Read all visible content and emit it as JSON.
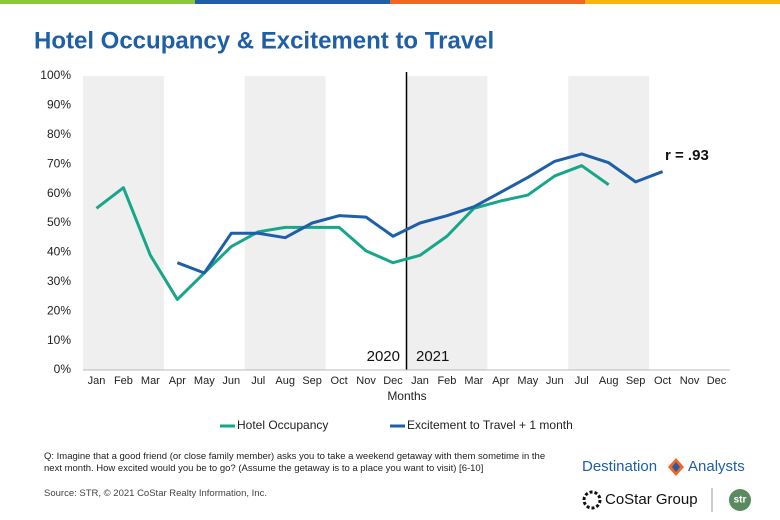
{
  "chart_data": {
    "type": "line",
    "title": "Hotel Occupancy & Excitement to Travel",
    "x_label": "Months",
    "categories": [
      "Jan",
      "Feb",
      "Mar",
      "Apr",
      "May",
      "Jun",
      "Jul",
      "Aug",
      "Sep",
      "Oct",
      "Nov",
      "Dec",
      "Jan",
      "Feb",
      "Mar",
      "Apr",
      "May",
      "Jun",
      "Jul",
      "Aug",
      "Sep",
      "Oct",
      "Nov",
      "Dec"
    ],
    "year_labels": [
      "2020",
      "2021"
    ],
    "annotation": "r = .93",
    "ylim": [
      0,
      100
    ],
    "yticks": [
      {
        "value": 0,
        "label": "0%"
      },
      {
        "value": 10,
        "label": "10%"
      },
      {
        "value": 20,
        "label": "20%"
      },
      {
        "value": 30,
        "label": "30%"
      },
      {
        "value": 40,
        "label": "40%"
      },
      {
        "value": 50,
        "label": "50%"
      },
      {
        "value": 60,
        "label": "60%"
      },
      {
        "value": 70,
        "label": "70%"
      },
      {
        "value": 80,
        "label": "80%"
      },
      {
        "value": 90,
        "label": "90%"
      },
      {
        "value": 100,
        "label": "100%"
      }
    ],
    "series": [
      {
        "name": "Hotel Occupancy",
        "color": "#17a68a",
        "values": [
          55,
          62,
          39,
          24,
          33,
          42,
          47,
          48.5,
          48.5,
          48.5,
          40.5,
          36.5,
          39,
          45.5,
          55,
          57.5,
          59.5,
          66,
          69.5,
          63,
          null,
          null,
          null,
          null
        ]
      },
      {
        "name": "Excitement to Travel + 1 month",
        "color": "#1f5fa8",
        "values": [
          null,
          null,
          null,
          36.5,
          33,
          46.5,
          46.5,
          45,
          50,
          52.5,
          52,
          45.5,
          50,
          52.5,
          55.5,
          60.5,
          65.5,
          71,
          73.5,
          70.5,
          64,
          67.5,
          null,
          null
        ]
      }
    ]
  },
  "footer": {
    "question": "Q: Imagine that a good friend (or close family member) asks you to take a weekend getaway with them sometime in the next month. How excited would you be to go? (Assume the getaway is to a place you want to visit) [6-10]",
    "source": "Source: STR, © 2021  CoStar Realty Information, Inc.",
    "logos": [
      "Destination",
      "Analysts",
      "CoStar Group",
      "str"
    ]
  }
}
